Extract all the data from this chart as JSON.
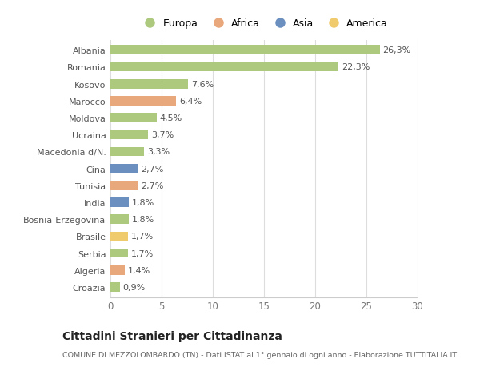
{
  "countries": [
    "Albania",
    "Romania",
    "Kosovo",
    "Marocco",
    "Moldova",
    "Ucraina",
    "Macedonia d/N.",
    "Cina",
    "Tunisia",
    "India",
    "Bosnia-Erzegovina",
    "Brasile",
    "Serbia",
    "Algeria",
    "Croazia"
  ],
  "values": [
    26.3,
    22.3,
    7.6,
    6.4,
    4.5,
    3.7,
    3.3,
    2.7,
    2.7,
    1.8,
    1.8,
    1.7,
    1.7,
    1.4,
    0.9
  ],
  "labels": [
    "26,3%",
    "22,3%",
    "7,6%",
    "6,4%",
    "4,5%",
    "3,7%",
    "3,3%",
    "2,7%",
    "2,7%",
    "1,8%",
    "1,8%",
    "1,7%",
    "1,7%",
    "1,4%",
    "0,9%"
  ],
  "continents": [
    "Europa",
    "Europa",
    "Europa",
    "Africa",
    "Europa",
    "Europa",
    "Europa",
    "Asia",
    "Africa",
    "Asia",
    "Europa",
    "America",
    "Europa",
    "Africa",
    "Europa"
  ],
  "continent_colors": {
    "Europa": "#adc97e",
    "Africa": "#e9a87c",
    "Asia": "#6b8fbe",
    "America": "#f0cb6e"
  },
  "legend_order": [
    "Europa",
    "Africa",
    "Asia",
    "America"
  ],
  "title": "Cittadini Stranieri per Cittadinanza",
  "subtitle": "COMUNE DI MEZZOLOMBARDO (TN) - Dati ISTAT al 1° gennaio di ogni anno - Elaborazione TUTTITALIA.IT",
  "xlim": [
    0,
    30
  ],
  "xticks": [
    0,
    5,
    10,
    15,
    20,
    25,
    30
  ],
  "bg_color": "#ffffff",
  "plot_bg_color": "#ffffff",
  "grid_color": "#dddddd",
  "bar_height": 0.55
}
